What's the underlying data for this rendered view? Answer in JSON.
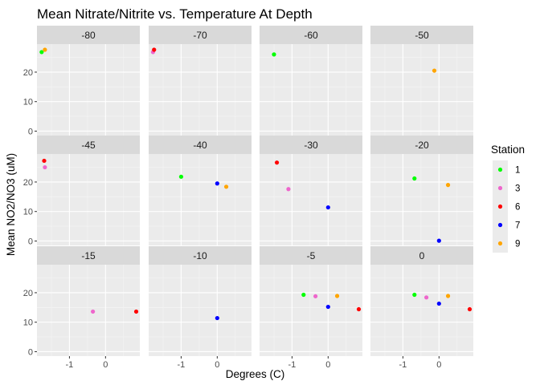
{
  "chart_data": {
    "type": "scatter",
    "title": "Mean Nitrate/Nitrite vs. Temperature At Depth",
    "xlabel": "Degrees (C)",
    "ylabel": "Mean NO2/NO3 (uM)",
    "xlim": [
      -1.9,
      0.95
    ],
    "ylim": [
      -1.5,
      29.5
    ],
    "x_ticks": [
      -1,
      0
    ],
    "y_ticks": [
      0,
      10,
      20
    ],
    "grid": true,
    "legend_position": "right",
    "legend": {
      "title": "Station",
      "entries": [
        {
          "name": "1",
          "color": "#00ff00"
        },
        {
          "name": "3",
          "color": "#ee66cc"
        },
        {
          "name": "6",
          "color": "#ff0000"
        },
        {
          "name": "7",
          "color": "#0000ff"
        },
        {
          "name": "9",
          "color": "#ffa500"
        }
      ]
    },
    "panels": [
      {
        "label": "-80",
        "points": [
          {
            "station": "1",
            "x": -1.77,
            "y": 26.8
          },
          {
            "station": "9",
            "x": -1.68,
            "y": 27.6
          }
        ]
      },
      {
        "label": "-70",
        "points": [
          {
            "station": "3",
            "x": -1.78,
            "y": 26.8
          },
          {
            "station": "6",
            "x": -1.75,
            "y": 27.6
          }
        ]
      },
      {
        "label": "-60",
        "points": [
          {
            "station": "1",
            "x": -1.5,
            "y": 26.0
          }
        ]
      },
      {
        "label": "-50",
        "points": [
          {
            "station": "9",
            "x": -0.13,
            "y": 20.5
          }
        ]
      },
      {
        "label": "-45",
        "points": [
          {
            "station": "6",
            "x": -1.7,
            "y": 27.2
          },
          {
            "station": "3",
            "x": -1.68,
            "y": 25.0
          }
        ]
      },
      {
        "label": "-40",
        "points": [
          {
            "station": "1",
            "x": -1.0,
            "y": 21.8
          },
          {
            "station": "7",
            "x": 0.0,
            "y": 19.5
          },
          {
            "station": "9",
            "x": 0.25,
            "y": 18.4
          }
        ]
      },
      {
        "label": "-30",
        "points": [
          {
            "station": "6",
            "x": -1.42,
            "y": 26.6
          },
          {
            "station": "3",
            "x": -1.1,
            "y": 17.6
          },
          {
            "station": "7",
            "x": 0.0,
            "y": 11.4
          }
        ]
      },
      {
        "label": "-20",
        "points": [
          {
            "station": "1",
            "x": -0.68,
            "y": 21.2
          },
          {
            "station": "9",
            "x": 0.25,
            "y": 19.0
          },
          {
            "station": "7",
            "x": 0.0,
            "y": 0.1
          }
        ]
      },
      {
        "label": "-15",
        "points": [
          {
            "station": "3",
            "x": -0.35,
            "y": 13.6
          },
          {
            "station": "6",
            "x": 0.85,
            "y": 13.6
          }
        ]
      },
      {
        "label": "-10",
        "points": [
          {
            "station": "7",
            "x": 0.0,
            "y": 11.4
          }
        ]
      },
      {
        "label": "-5",
        "points": [
          {
            "station": "1",
            "x": -0.68,
            "y": 19.3
          },
          {
            "station": "3",
            "x": -0.35,
            "y": 18.8
          },
          {
            "station": "9",
            "x": 0.25,
            "y": 18.9
          },
          {
            "station": "7",
            "x": 0.0,
            "y": 15.2
          },
          {
            "station": "6",
            "x": 0.85,
            "y": 14.4
          }
        ]
      },
      {
        "label": "0",
        "points": [
          {
            "station": "1",
            "x": -0.68,
            "y": 19.3
          },
          {
            "station": "3",
            "x": -0.35,
            "y": 18.4
          },
          {
            "station": "9",
            "x": 0.25,
            "y": 18.9
          },
          {
            "station": "7",
            "x": 0.0,
            "y": 16.3
          },
          {
            "station": "6",
            "x": 0.85,
            "y": 14.4
          }
        ]
      }
    ]
  }
}
